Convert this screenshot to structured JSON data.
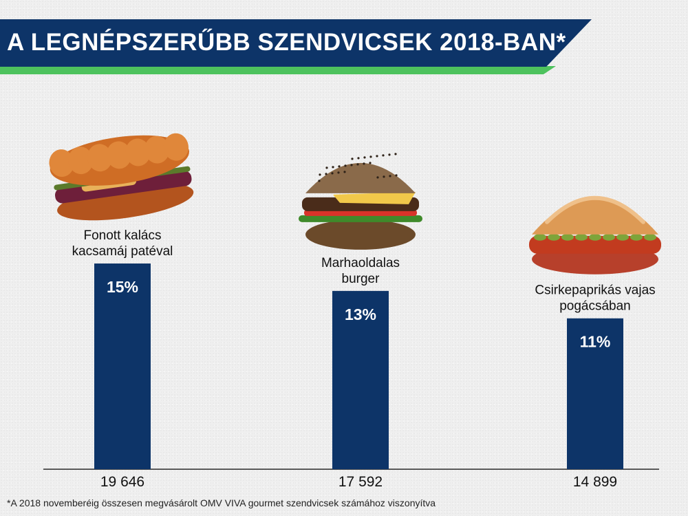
{
  "title": "A LEGNÉPSZERŰBB SZENDVICSEK 2018-BAN*",
  "footnote": "*A 2018 novemberéig összesen megvásárolt OMV VIVA gourmet szendvicsek számához viszonyítva",
  "colors": {
    "bar": "#0d3468",
    "banner": "#0d3468",
    "accent": "#4dc25d",
    "axis": "#000000"
  },
  "chart_data": {
    "type": "bar",
    "categories": [
      [
        "Fonott kalács",
        "kacsamáj patéval"
      ],
      [
        "Marhaoldalas",
        "burger"
      ],
      [
        "Csirkepaprikás vajas",
        "pogácsában"
      ]
    ],
    "values": [
      15,
      13,
      11
    ],
    "value_labels": [
      "15%",
      "13%",
      "11%"
    ],
    "counts": [
      "19 646",
      "17 592",
      "14 899"
    ],
    "images": [
      "sandwich-braided-bun-icon",
      "burger-icon",
      "pogacsa-sandwich-icon"
    ],
    "ylim": [
      0,
      15
    ]
  }
}
